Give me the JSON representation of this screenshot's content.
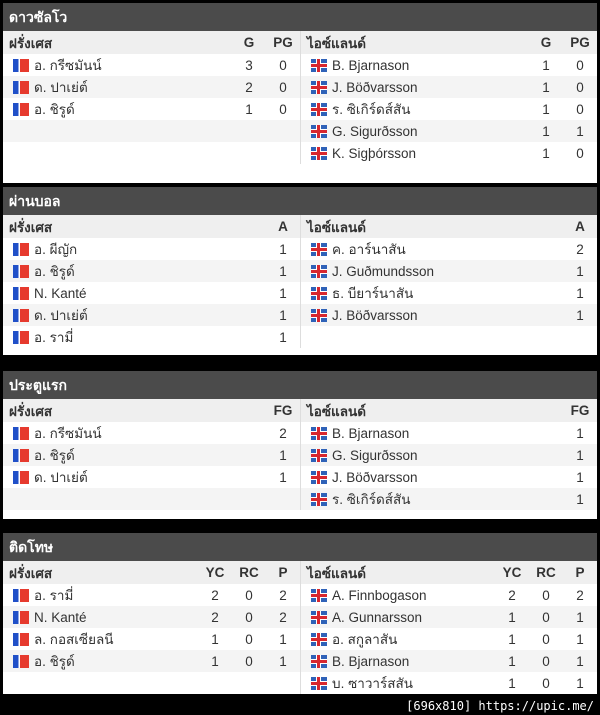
{
  "sections": [
    {
      "title": "ดาวซัลโว",
      "stats": [
        "G",
        "PG"
      ],
      "left": {
        "team": "ฝรั่งเศส",
        "flag": "france-flag-icon",
        "rows": [
          [
            "อ. กรีซมันน์",
            "3",
            "0"
          ],
          [
            "ด. ปาเย่ต์",
            "2",
            "0"
          ],
          [
            "อ. ชิรูด์",
            "1",
            "0"
          ]
        ]
      },
      "right": {
        "team": "ไอซ์แลนด์",
        "flag": "iceland-flag-icon",
        "rows": [
          [
            "B. Bjarnason",
            "1",
            "0"
          ],
          [
            "J. Böðvarsson",
            "1",
            "0"
          ],
          [
            "ร. ซิเกิร์ดส์สัน",
            "1",
            "0"
          ],
          [
            "G. Sigurðsson",
            "1",
            "1"
          ],
          [
            "K. Sigþórsson",
            "1",
            "0"
          ]
        ]
      }
    },
    {
      "title": "ผ่านบอล",
      "stats": [
        "A"
      ],
      "left": {
        "team": "ฝรั่งเศส",
        "flag": "france-flag-icon",
        "rows": [
          [
            "อ. ผีญัก",
            "1"
          ],
          [
            "อ. ชิรูด์",
            "1"
          ],
          [
            "N. Kanté",
            "1"
          ],
          [
            "ด. ปาเย่ต์",
            "1"
          ],
          [
            "อ. รามี่",
            "1"
          ]
        ]
      },
      "right": {
        "team": "ไอซ์แลนด์",
        "flag": "iceland-flag-icon",
        "rows": [
          [
            "ค. อาร์นาสัน",
            "2"
          ],
          [
            "J. Guðmundsson",
            "1"
          ],
          [
            "ธ. บียาร์นาสัน",
            "1"
          ],
          [
            "J. Böðvarsson",
            "1"
          ]
        ]
      }
    },
    {
      "title": "ประตูแรก",
      "stats": [
        "FG"
      ],
      "left": {
        "team": "ฝรั่งเศส",
        "flag": "france-flag-icon",
        "rows": [
          [
            "อ. กรีซมันน์",
            "2"
          ],
          [
            "อ. ชิรูด์",
            "1"
          ],
          [
            "ด. ปาเย่ต์",
            "1"
          ]
        ]
      },
      "right": {
        "team": "ไอซ์แลนด์",
        "flag": "iceland-flag-icon",
        "rows": [
          [
            "B. Bjarnason",
            "1"
          ],
          [
            "G. Sigurðsson",
            "1"
          ],
          [
            "J. Böðvarsson",
            "1"
          ],
          [
            "ร. ซิเกิร์ดส์สัน",
            "1"
          ]
        ]
      }
    },
    {
      "title": "ติดโทษ",
      "stats": [
        "YC",
        "RC",
        "P"
      ],
      "left": {
        "team": "ฝรั่งเศส",
        "flag": "france-flag-icon",
        "rows": [
          [
            "อ. รามี่",
            "2",
            "0",
            "2"
          ],
          [
            "N. Kanté",
            "2",
            "0",
            "2"
          ],
          [
            "ล. กอสเซียลนี",
            "1",
            "0",
            "1"
          ],
          [
            "อ. ชิรูด์",
            "1",
            "0",
            "1"
          ]
        ]
      },
      "right": {
        "team": "ไอซ์แลนด์",
        "flag": "iceland-flag-icon",
        "rows": [
          [
            "A. Finnbogason",
            "2",
            "0",
            "2"
          ],
          [
            "A. Gunnarsson",
            "1",
            "0",
            "1"
          ],
          [
            "อ. สกูลาสัน",
            "1",
            "0",
            "1"
          ],
          [
            "B. Bjarnason",
            "1",
            "0",
            "1"
          ],
          [
            "บ. ซาวาร์สสัน",
            "1",
            "0",
            "1"
          ]
        ]
      }
    }
  ],
  "watermark": "[696x810] https://upic.me/"
}
